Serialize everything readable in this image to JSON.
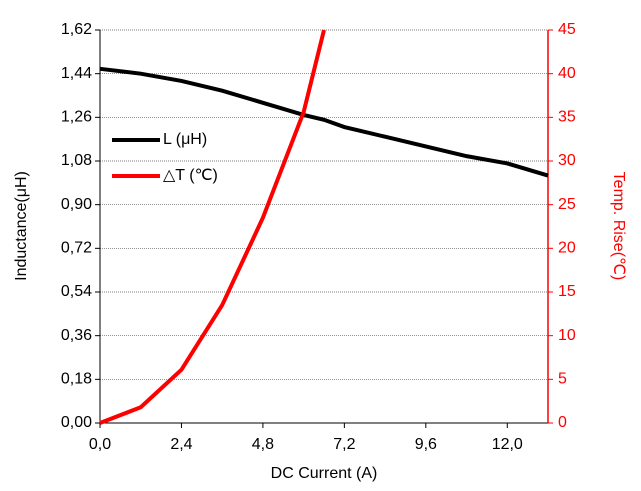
{
  "chart_data": {
    "type": "line",
    "x_label": "DC Current (A)",
    "y_label": "Inductance(μH)",
    "y2_label": "Temp. Rise(℃)",
    "x": [
      0,
      1.2,
      2.4,
      3.6,
      4.8,
      6.0,
      6.6,
      7.2,
      8.4,
      9.6,
      10.8,
      12.0,
      13.2
    ],
    "series": [
      {
        "name": "L (μH)",
        "color": "#000000",
        "values": [
          1.46,
          1.44,
          1.41,
          1.37,
          1.32,
          1.27,
          1.25,
          1.22,
          1.18,
          1.14,
          1.1,
          1.07,
          1.02
        ]
      },
      {
        "name": "△T (℃)",
        "color": "#ff0000",
        "axis": "y2",
        "values": [
          0,
          1.8,
          6.1,
          13.5,
          23.5,
          35.6,
          45,
          null,
          null,
          null,
          null,
          null,
          null
        ]
      }
    ],
    "xlim": [
      0,
      13.2
    ],
    "xticks": [
      {
        "value": 0,
        "label": "0,0"
      },
      {
        "value": 2.4,
        "label": "2,4"
      },
      {
        "value": 4.8,
        "label": "4,8"
      },
      {
        "value": 7.2,
        "label": "7,2"
      },
      {
        "value": 9.6,
        "label": "9,6"
      },
      {
        "value": 12.0,
        "label": "12,0"
      }
    ],
    "ylim": [
      0,
      1.62
    ],
    "yticks": [
      {
        "value": 0,
        "label": "0,00"
      },
      {
        "value": 0.18,
        "label": "0,18"
      },
      {
        "value": 0.36,
        "label": "0,36"
      },
      {
        "value": 0.54,
        "label": "0,54"
      },
      {
        "value": 0.72,
        "label": "0,72"
      },
      {
        "value": 0.9,
        "label": "0,90"
      },
      {
        "value": 1.08,
        "label": "1,08"
      },
      {
        "value": 1.26,
        "label": "1,26"
      },
      {
        "value": 1.44,
        "label": "1,44"
      },
      {
        "value": 1.62,
        "label": "1,62"
      }
    ],
    "y2lim": [
      0,
      45
    ],
    "y2ticks": [
      0,
      5,
      10,
      15,
      20,
      25,
      30,
      35,
      40,
      45
    ],
    "y2_color": "#ff0000",
    "grid": true,
    "legend": "left"
  }
}
